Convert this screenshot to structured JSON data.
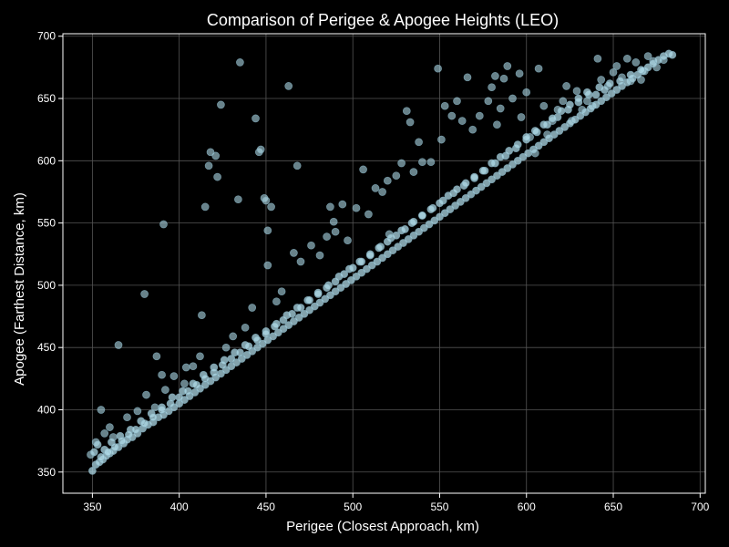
{
  "chart_data": {
    "type": "scatter",
    "title": "Comparison of Perigee & Apogee Heights (LEO)",
    "xlabel": "Perigee (Closest Approach, km)",
    "ylabel": "Apogee (Farthest Distance, km)",
    "xlim": [
      333,
      703
    ],
    "ylim": [
      333,
      702
    ],
    "xticks": [
      350,
      400,
      450,
      500,
      550,
      600,
      650,
      700
    ],
    "yticks": [
      350,
      400,
      450,
      500,
      550,
      600,
      650,
      700
    ],
    "grid": true,
    "background": "#000000",
    "axis_color": "#ffffff",
    "grid_color": "#555555",
    "point_color": "#add8e6",
    "point_edge_color": "#7fa9b8",
    "band_points": [
      [
        350,
        351
      ],
      [
        352,
        356
      ],
      [
        354,
        358
      ],
      [
        356,
        360
      ],
      [
        358,
        363
      ],
      [
        360,
        365
      ],
      [
        362,
        367
      ],
      [
        365,
        370
      ],
      [
        368,
        373
      ],
      [
        370,
        376
      ],
      [
        373,
        378
      ],
      [
        376,
        381
      ],
      [
        379,
        385
      ],
      [
        382,
        388
      ],
      [
        385,
        390
      ],
      [
        388,
        394
      ],
      [
        391,
        396
      ],
      [
        394,
        399
      ],
      [
        397,
        402
      ],
      [
        400,
        405
      ],
      [
        403,
        408
      ],
      [
        406,
        411
      ],
      [
        409,
        414
      ],
      [
        412,
        417
      ],
      [
        415,
        420
      ],
      [
        418,
        423
      ],
      [
        421,
        426
      ],
      [
        424,
        429
      ],
      [
        427,
        432
      ],
      [
        430,
        435
      ],
      [
        433,
        438
      ],
      [
        436,
        441
      ],
      [
        439,
        444
      ],
      [
        442,
        447
      ],
      [
        445,
        450
      ],
      [
        448,
        453
      ],
      [
        451,
        456
      ],
      [
        454,
        459
      ],
      [
        457,
        462
      ],
      [
        460,
        465
      ],
      [
        463,
        468
      ],
      [
        466,
        471
      ],
      [
        469,
        474
      ],
      [
        472,
        477
      ],
      [
        475,
        480
      ],
      [
        478,
        483
      ],
      [
        481,
        486
      ],
      [
        484,
        489
      ],
      [
        487,
        492
      ],
      [
        490,
        495
      ],
      [
        493,
        498
      ],
      [
        496,
        501
      ],
      [
        499,
        504
      ],
      [
        502,
        507
      ],
      [
        505,
        510
      ],
      [
        508,
        513
      ],
      [
        511,
        516
      ],
      [
        514,
        519
      ],
      [
        517,
        522
      ],
      [
        520,
        525
      ],
      [
        523,
        528
      ],
      [
        526,
        531
      ],
      [
        529,
        534
      ],
      [
        532,
        537
      ],
      [
        535,
        540
      ],
      [
        538,
        543
      ],
      [
        541,
        546
      ],
      [
        544,
        549
      ],
      [
        547,
        552
      ],
      [
        550,
        555
      ],
      [
        553,
        558
      ],
      [
        556,
        561
      ],
      [
        559,
        564
      ],
      [
        562,
        567
      ],
      [
        565,
        570
      ],
      [
        568,
        573
      ],
      [
        571,
        576
      ],
      [
        574,
        579
      ],
      [
        577,
        582
      ],
      [
        580,
        585
      ],
      [
        583,
        588
      ],
      [
        586,
        591
      ],
      [
        589,
        594
      ],
      [
        592,
        597
      ],
      [
        595,
        600
      ],
      [
        598,
        603
      ],
      [
        601,
        606
      ],
      [
        604,
        609
      ],
      [
        607,
        612
      ],
      [
        610,
        615
      ],
      [
        613,
        618
      ],
      [
        616,
        621
      ],
      [
        619,
        624
      ],
      [
        622,
        627
      ],
      [
        625,
        630
      ],
      [
        628,
        633
      ],
      [
        631,
        636
      ],
      [
        634,
        639
      ],
      [
        637,
        642
      ],
      [
        640,
        645
      ],
      [
        643,
        648
      ],
      [
        646,
        651
      ],
      [
        649,
        654
      ],
      [
        652,
        657
      ],
      [
        655,
        660
      ],
      [
        658,
        663
      ],
      [
        661,
        666
      ],
      [
        664,
        669
      ],
      [
        667,
        672
      ],
      [
        670,
        675
      ],
      [
        673,
        678
      ],
      [
        676,
        681
      ],
      [
        679,
        684
      ],
      [
        682,
        686
      ],
      [
        684,
        685
      ],
      [
        351,
        366
      ],
      [
        353,
        372
      ],
      [
        357,
        368
      ],
      [
        361,
        374
      ],
      [
        366,
        379
      ],
      [
        372,
        384
      ],
      [
        378,
        391
      ],
      [
        384,
        397
      ],
      [
        390,
        402
      ],
      [
        396,
        410
      ],
      [
        402,
        415
      ],
      [
        408,
        421
      ],
      [
        414,
        428
      ],
      [
        420,
        434
      ],
      [
        426,
        440
      ],
      [
        432,
        446
      ],
      [
        438,
        452
      ],
      [
        444,
        458
      ],
      [
        450,
        463
      ],
      [
        456,
        469
      ],
      [
        462,
        476
      ],
      [
        468,
        482
      ],
      [
        474,
        488
      ],
      [
        480,
        494
      ],
      [
        486,
        500
      ],
      [
        492,
        507
      ],
      [
        498,
        513
      ],
      [
        504,
        519
      ],
      [
        510,
        525
      ],
      [
        516,
        531
      ],
      [
        522,
        538
      ],
      [
        528,
        544
      ],
      [
        534,
        550
      ],
      [
        540,
        556
      ],
      [
        546,
        562
      ],
      [
        552,
        568
      ],
      [
        558,
        574
      ],
      [
        564,
        580
      ],
      [
        570,
        586
      ],
      [
        576,
        592
      ],
      [
        582,
        598
      ],
      [
        588,
        604
      ],
      [
        594,
        610
      ],
      [
        600,
        617
      ],
      [
        606,
        623
      ],
      [
        612,
        629
      ],
      [
        618,
        635
      ],
      [
        624,
        641
      ],
      [
        630,
        647
      ],
      [
        636,
        653
      ],
      [
        642,
        659
      ],
      [
        648,
        662
      ],
      [
        654,
        664
      ],
      [
        660,
        669
      ],
      [
        666,
        673
      ],
      [
        355,
        362
      ],
      [
        359,
        366
      ],
      [
        363,
        370
      ],
      [
        367,
        375
      ],
      [
        371,
        380
      ],
      [
        375,
        384
      ],
      [
        380,
        389
      ],
      [
        385,
        394
      ],
      [
        390,
        400
      ],
      [
        395,
        405
      ],
      [
        400,
        410
      ],
      [
        405,
        415
      ],
      [
        410,
        420
      ],
      [
        415,
        425
      ],
      [
        420,
        430
      ],
      [
        425,
        436
      ],
      [
        430,
        441
      ],
      [
        435,
        446
      ],
      [
        440,
        451
      ],
      [
        445,
        456
      ],
      [
        450,
        461
      ],
      [
        455,
        467
      ],
      [
        460,
        472
      ],
      [
        465,
        477
      ],
      [
        470,
        482
      ],
      [
        475,
        488
      ],
      [
        480,
        493
      ],
      [
        485,
        498
      ],
      [
        490,
        503
      ],
      [
        495,
        509
      ],
      [
        500,
        514
      ],
      [
        505,
        519
      ],
      [
        510,
        524
      ],
      [
        515,
        530
      ],
      [
        520,
        535
      ],
      [
        525,
        540
      ],
      [
        530,
        545
      ],
      [
        535,
        551
      ],
      [
        540,
        556
      ],
      [
        545,
        561
      ],
      [
        550,
        566
      ],
      [
        555,
        572
      ],
      [
        560,
        577
      ],
      [
        565,
        582
      ],
      [
        570,
        587
      ],
      [
        575,
        592
      ],
      [
        580,
        598
      ],
      [
        585,
        603
      ],
      [
        590,
        608
      ],
      [
        595,
        613
      ],
      [
        600,
        619
      ],
      [
        605,
        624
      ],
      [
        610,
        629
      ],
      [
        615,
        634
      ],
      [
        620,
        640
      ],
      [
        625,
        645
      ],
      [
        630,
        650
      ],
      [
        635,
        655
      ],
      [
        640,
        653
      ],
      [
        645,
        657
      ]
    ],
    "scattered_points": [
      [
        349,
        364
      ],
      [
        352,
        374
      ],
      [
        355,
        400
      ],
      [
        357,
        381
      ],
      [
        360,
        386
      ],
      [
        362,
        378
      ],
      [
        365,
        452
      ],
      [
        370,
        394
      ],
      [
        376,
        399
      ],
      [
        380,
        493
      ],
      [
        381,
        412
      ],
      [
        386,
        402
      ],
      [
        387,
        443
      ],
      [
        390,
        428
      ],
      [
        391,
        549
      ],
      [
        392,
        416
      ],
      [
        397,
        427
      ],
      [
        403,
        421
      ],
      [
        404,
        434
      ],
      [
        408,
        435
      ],
      [
        412,
        443
      ],
      [
        413,
        476
      ],
      [
        415,
        563
      ],
      [
        417,
        596
      ],
      [
        418,
        607
      ],
      [
        421,
        604
      ],
      [
        422,
        587
      ],
      [
        424,
        645
      ],
      [
        427,
        450
      ],
      [
        431,
        459
      ],
      [
        434,
        569
      ],
      [
        435,
        679
      ],
      [
        438,
        466
      ],
      [
        442,
        482
      ],
      [
        444,
        634
      ],
      [
        446,
        607
      ],
      [
        447,
        609
      ],
      [
        449,
        570
      ],
      [
        450,
        568
      ],
      [
        451,
        544
      ],
      [
        451,
        516
      ],
      [
        453,
        563
      ],
      [
        456,
        487
      ],
      [
        459,
        495
      ],
      [
        463,
        660
      ],
      [
        466,
        526
      ],
      [
        468,
        596
      ],
      [
        470,
        519
      ],
      [
        476,
        532
      ],
      [
        481,
        524
      ],
      [
        485,
        539
      ],
      [
        487,
        563
      ],
      [
        489,
        551
      ],
      [
        490,
        543
      ],
      [
        494,
        565
      ],
      [
        497,
        536
      ],
      [
        502,
        562
      ],
      [
        506,
        593
      ],
      [
        509,
        557
      ],
      [
        513,
        578
      ],
      [
        517,
        575
      ],
      [
        520,
        584
      ],
      [
        521,
        541
      ],
      [
        525,
        588
      ],
      [
        528,
        598
      ],
      [
        531,
        640
      ],
      [
        533,
        631
      ],
      [
        535,
        591
      ],
      [
        538,
        615
      ],
      [
        540,
        599
      ],
      [
        545,
        599
      ],
      [
        549,
        674
      ],
      [
        551,
        617
      ],
      [
        553,
        644
      ],
      [
        557,
        636
      ],
      [
        560,
        648
      ],
      [
        563,
        632
      ],
      [
        566,
        667
      ],
      [
        569,
        625
      ],
      [
        573,
        636
      ],
      [
        578,
        648
      ],
      [
        580,
        659
      ],
      [
        582,
        668
      ],
      [
        583,
        629
      ],
      [
        585,
        642
      ],
      [
        587,
        666
      ],
      [
        589,
        676
      ],
      [
        592,
        650
      ],
      [
        596,
        670
      ],
      [
        597,
        635
      ],
      [
        600,
        655
      ],
      [
        602,
        619
      ],
      [
        605,
        606
      ],
      [
        607,
        674
      ],
      [
        610,
        644
      ],
      [
        612,
        621
      ],
      [
        615,
        632
      ],
      [
        618,
        641
      ],
      [
        621,
        648
      ],
      [
        623,
        660
      ],
      [
        626,
        632
      ],
      [
        629,
        656
      ],
      [
        632,
        641
      ],
      [
        635,
        648
      ],
      [
        638,
        644
      ],
      [
        641,
        682
      ],
      [
        643,
        665
      ],
      [
        647,
        660
      ],
      [
        650,
        671
      ],
      [
        652,
        676
      ],
      [
        655,
        667
      ],
      [
        658,
        682
      ],
      [
        660,
        664
      ],
      [
        663,
        679
      ],
      [
        666,
        665
      ],
      [
        668,
        672
      ],
      [
        670,
        684
      ],
      [
        673,
        680
      ],
      [
        675,
        675
      ],
      [
        679,
        681
      ]
    ]
  }
}
